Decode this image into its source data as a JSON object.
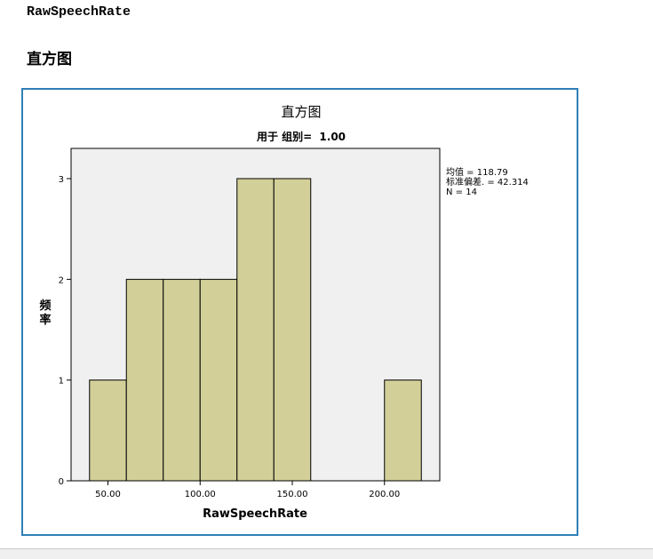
{
  "variable_heading": "RawSpeechRate",
  "section_title": "直方图",
  "chart_data": {
    "type": "bar",
    "title": "直方图",
    "subtitle_prefix": "用于 组别=",
    "subtitle_value": "1.00",
    "xlabel": "RawSpeechRate",
    "ylabel_chars": [
      "频",
      "率"
    ],
    "bin_edges": [
      40,
      60,
      80,
      100,
      120,
      140,
      160,
      180,
      200,
      220
    ],
    "values": [
      1,
      2,
      2,
      2,
      3,
      3,
      0,
      0,
      1
    ],
    "xlim": [
      30,
      230
    ],
    "ylim": [
      0,
      3.3
    ],
    "x_ticks": [
      {
        "value": 50,
        "label": "50.00"
      },
      {
        "value": 100,
        "label": "100.00"
      },
      {
        "value": 150,
        "label": "150.00"
      },
      {
        "value": 200,
        "label": "200.00"
      }
    ],
    "y_ticks": [
      {
        "value": 0,
        "label": "0"
      },
      {
        "value": 1,
        "label": "1"
      },
      {
        "value": 2,
        "label": "2"
      },
      {
        "value": 3,
        "label": "3"
      }
    ],
    "stats": {
      "mean_text": "均值 = 118.79",
      "std_text": "标准偏差. = 42.314",
      "n_text": "N = 14"
    },
    "colors": {
      "bar_fill": "#d3cf98",
      "plot_bg": "#f0f0f0",
      "frame": "#2f7fb6"
    }
  }
}
